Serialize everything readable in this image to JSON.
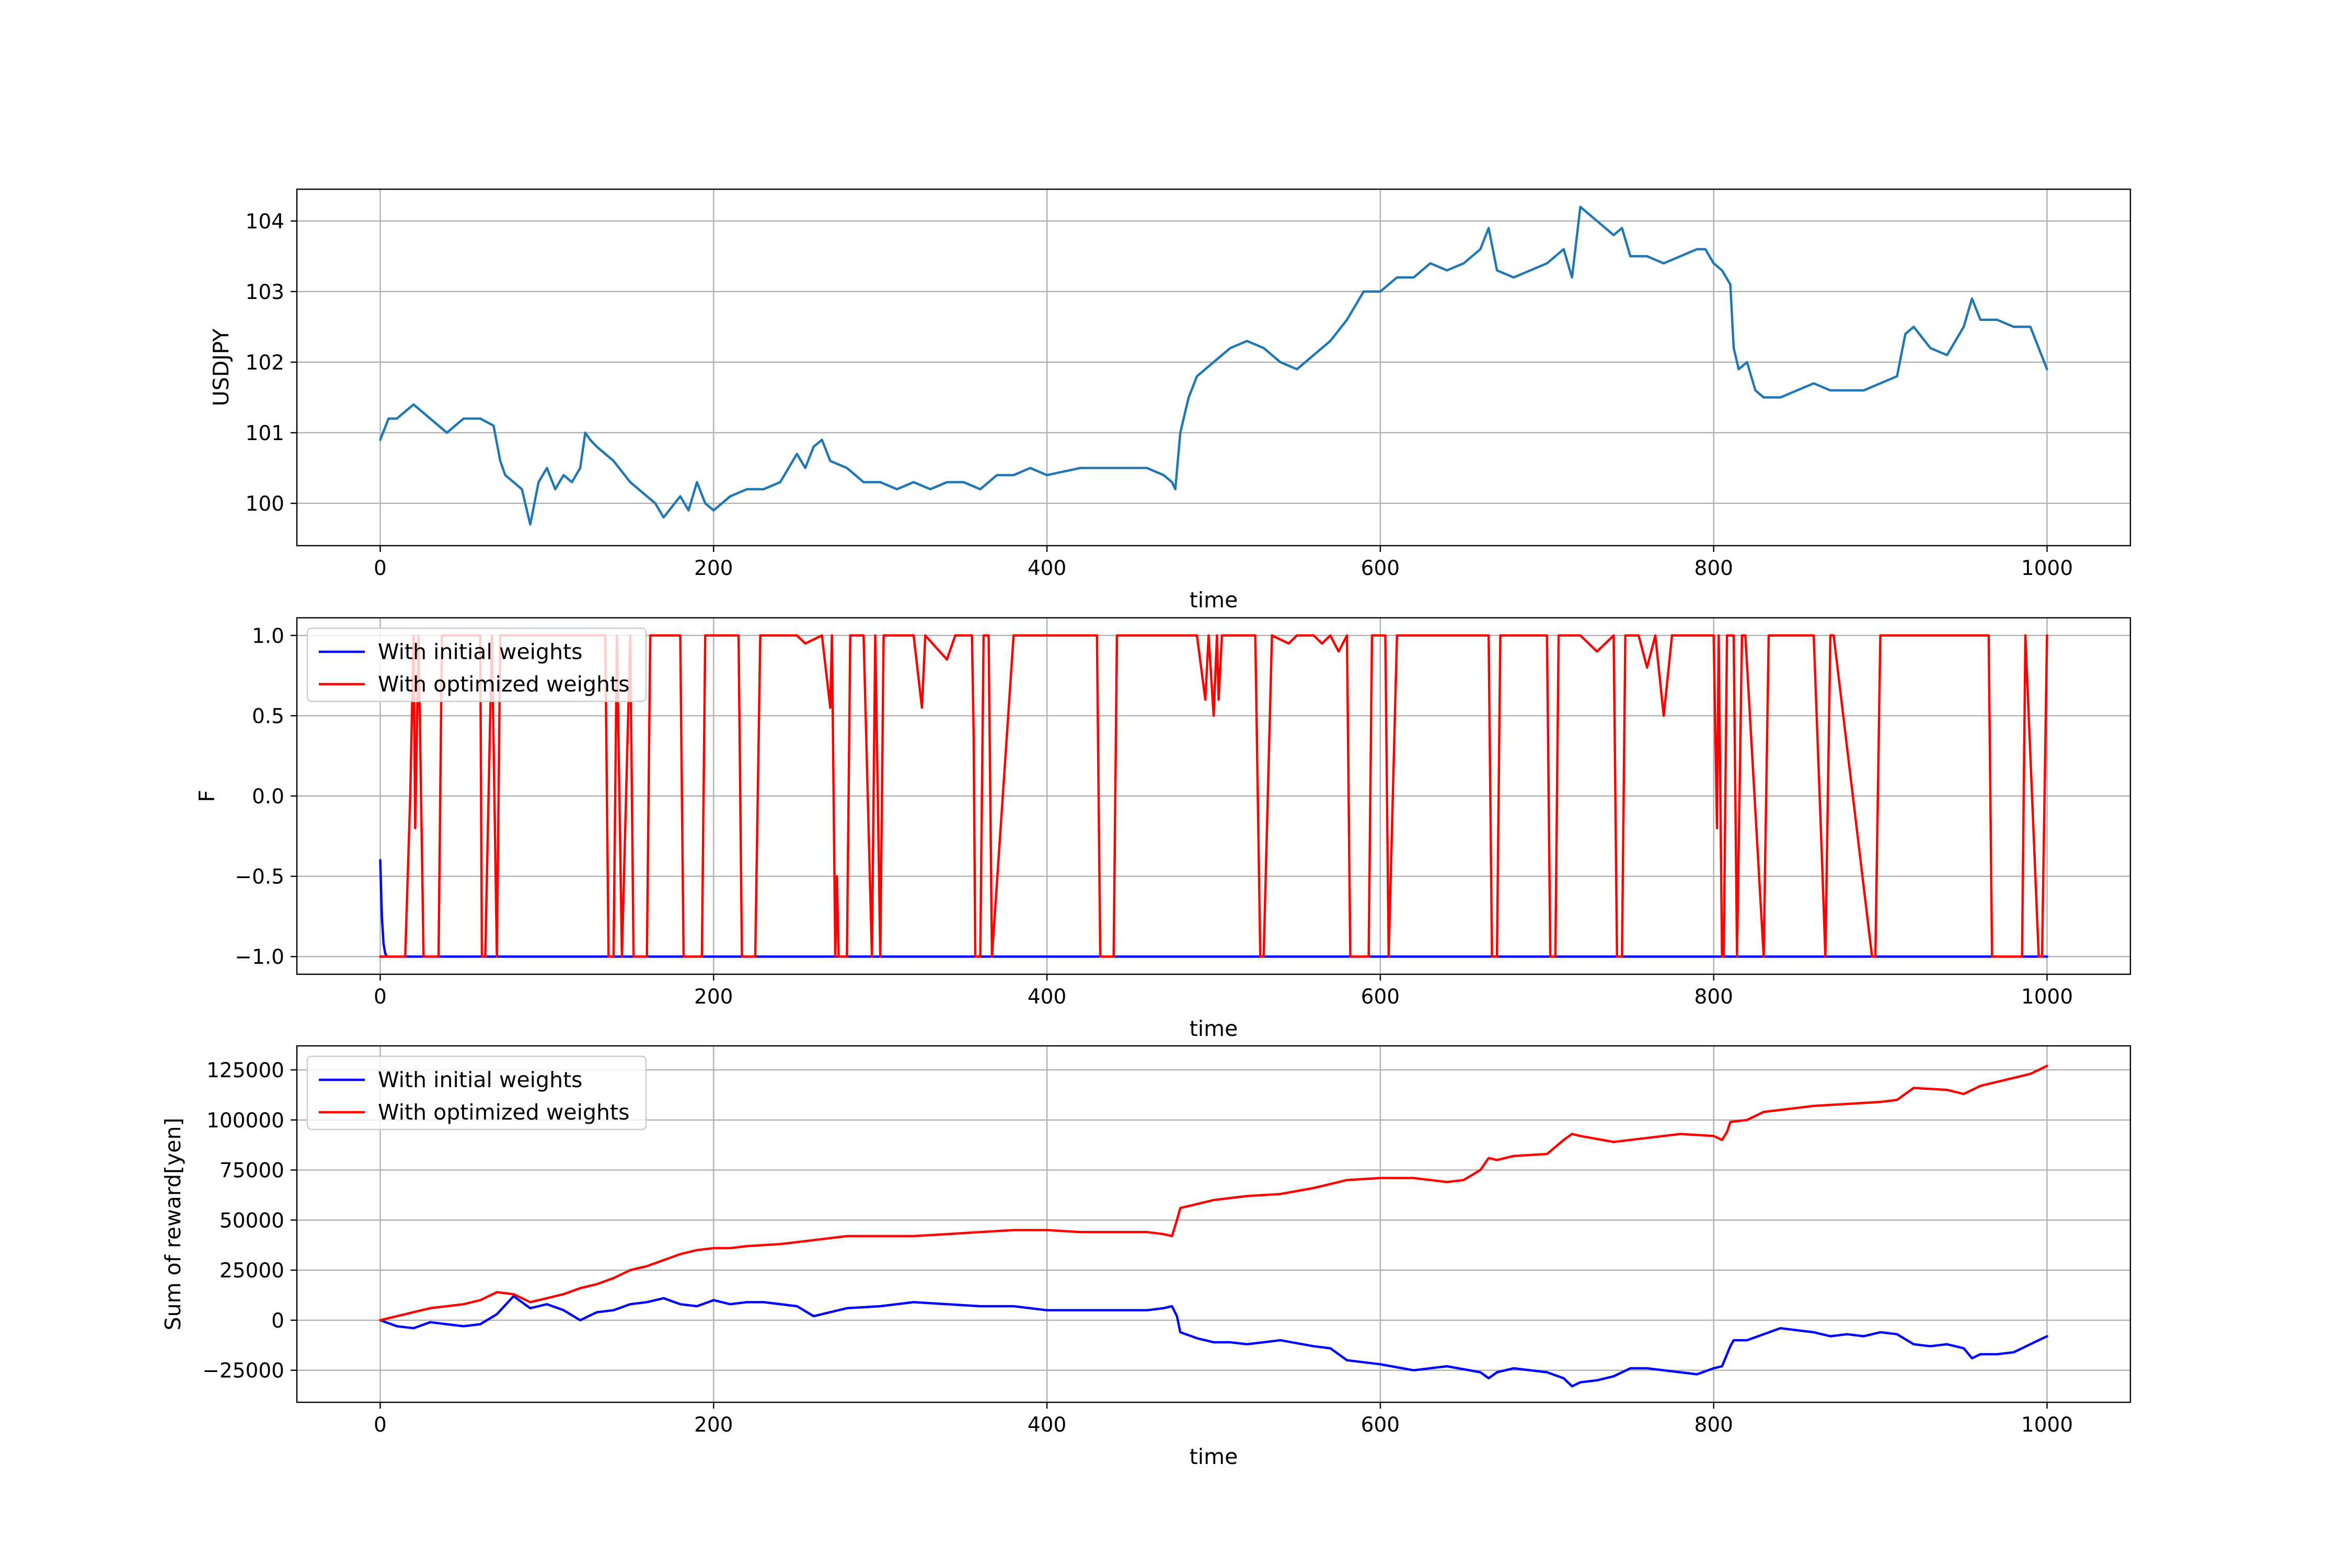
{
  "chart_data": [
    {
      "type": "line",
      "title": "",
      "xlabel": "time",
      "ylabel": "USDJPY",
      "xlim": [
        -50,
        1050
      ],
      "ylim": [
        99.4,
        104.45
      ],
      "x_ticks": [
        0,
        200,
        400,
        600,
        800,
        1000
      ],
      "x_tick_labels": [
        "0",
        "200",
        "400",
        "600",
        "800",
        "1000"
      ],
      "y_ticks": [
        100,
        101,
        102,
        103,
        104
      ],
      "y_tick_labels": [
        "100",
        "101",
        "102",
        "103",
        "104"
      ],
      "grid": true,
      "legend": null,
      "series": [
        {
          "color": "#1f77b4",
          "x": [
            0,
            5,
            10,
            20,
            30,
            40,
            50,
            60,
            68,
            72,
            75,
            80,
            85,
            88,
            90,
            95,
            100,
            105,
            110,
            115,
            120,
            123,
            126,
            130,
            140,
            150,
            155,
            160,
            165,
            170,
            180,
            185,
            190,
            195,
            200,
            210,
            220,
            230,
            240,
            250,
            255,
            260,
            265,
            270,
            280,
            290,
            300,
            310,
            320,
            330,
            340,
            350,
            360,
            370,
            380,
            390,
            400,
            420,
            440,
            460,
            470,
            475,
            477,
            480,
            485,
            490,
            500,
            510,
            520,
            530,
            540,
            550,
            560,
            570,
            580,
            590,
            600,
            610,
            620,
            630,
            640,
            650,
            660,
            665,
            670,
            680,
            690,
            700,
            710,
            715,
            720,
            730,
            740,
            745,
            750,
            760,
            770,
            780,
            790,
            795,
            800,
            805,
            810,
            812,
            815,
            820,
            825,
            830,
            840,
            850,
            860,
            870,
            880,
            890,
            900,
            910,
            915,
            920,
            930,
            940,
            950,
            955,
            960,
            970,
            980,
            990,
            995,
            1000
          ],
          "y": [
            100.9,
            101.2,
            101.2,
            101.4,
            101.2,
            101.0,
            101.2,
            101.2,
            101.1,
            100.6,
            100.4,
            100.3,
            100.2,
            99.9,
            99.7,
            100.3,
            100.5,
            100.2,
            100.4,
            100.3,
            100.5,
            101.0,
            100.9,
            100.8,
            100.6,
            100.3,
            100.2,
            100.1,
            100.0,
            99.8,
            100.1,
            99.9,
            100.3,
            100.0,
            99.9,
            100.1,
            100.2,
            100.2,
            100.3,
            100.7,
            100.5,
            100.8,
            100.9,
            100.6,
            100.5,
            100.3,
            100.3,
            100.2,
            100.3,
            100.2,
            100.3,
            100.3,
            100.2,
            100.4,
            100.4,
            100.5,
            100.4,
            100.5,
            100.5,
            100.5,
            100.4,
            100.3,
            100.2,
            101.0,
            101.5,
            101.8,
            102.0,
            102.2,
            102.3,
            102.2,
            102.0,
            101.9,
            102.1,
            102.3,
            102.6,
            103.0,
            103.0,
            103.2,
            103.2,
            103.4,
            103.3,
            103.4,
            103.6,
            103.9,
            103.3,
            103.2,
            103.3,
            103.4,
            103.6,
            103.2,
            104.2,
            104.0,
            103.8,
            103.9,
            103.5,
            103.5,
            103.4,
            103.5,
            103.6,
            103.6,
            103.4,
            103.3,
            103.1,
            102.2,
            101.9,
            102.0,
            101.6,
            101.5,
            101.5,
            101.6,
            101.7,
            101.6,
            101.6,
            101.6,
            101.7,
            101.8,
            102.4,
            102.5,
            102.2,
            102.1,
            102.5,
            102.9,
            102.6,
            102.6,
            102.5,
            102.5,
            102.2,
            101.9
          ]
        }
      ]
    },
    {
      "type": "line",
      "title": "",
      "xlabel": "time",
      "ylabel": "F",
      "xlim": [
        -50,
        1050
      ],
      "ylim": [
        -1.11,
        1.11
      ],
      "x_ticks": [
        0,
        200,
        400,
        600,
        800,
        1000
      ],
      "x_tick_labels": [
        "0",
        "200",
        "400",
        "600",
        "800",
        "1000"
      ],
      "y_ticks": [
        -1.0,
        -0.5,
        0.0,
        0.5,
        1.0
      ],
      "y_tick_labels": [
        "−1.0",
        "−0.5",
        "0.0",
        "0.5",
        "1.0"
      ],
      "grid": true,
      "legend": "upper left",
      "series": [
        {
          "name": "With initial weights",
          "color": "#0000ff",
          "x": [
            0,
            1,
            2,
            3,
            4,
            5,
            10,
            1000
          ],
          "y": [
            -0.4,
            -0.75,
            -0.92,
            -0.98,
            -1.0,
            -1.0,
            -1.0,
            -1.0
          ]
        },
        {
          "name": "With optimized weights",
          "color": "#ff0000",
          "x": [
            0,
            15,
            18,
            20,
            21,
            23,
            26,
            35,
            37,
            60,
            61,
            63,
            67,
            70,
            72,
            135,
            137,
            140,
            142,
            145,
            150,
            152,
            160,
            162,
            180,
            182,
            193,
            195,
            215,
            217,
            225,
            228,
            230,
            235,
            240,
            245,
            250,
            255,
            265,
            270,
            271,
            273,
            274,
            275,
            276,
            280,
            282,
            290,
            295,
            297,
            300,
            302,
            320,
            325,
            327,
            340,
            345,
            355,
            356,
            357,
            360,
            362,
            365,
            367,
            380,
            400,
            410,
            420,
            430,
            432,
            440,
            442,
            490,
            495,
            497,
            500,
            502,
            503,
            505,
            525,
            528,
            530,
            535,
            545,
            550,
            560,
            565,
            570,
            575,
            580,
            582,
            593,
            595,
            603,
            605,
            610,
            612,
            630,
            640,
            650,
            665,
            667,
            670,
            672,
            680,
            700,
            702,
            705,
            707,
            720,
            730,
            740,
            742,
            745,
            747,
            755,
            760,
            765,
            770,
            775,
            780,
            800,
            802,
            803,
            805,
            806,
            808,
            812,
            814,
            817,
            819,
            830,
            833,
            840,
            850,
            860,
            865,
            867,
            870,
            872,
            895,
            897,
            900,
            902,
            930,
            945,
            965,
            967,
            985,
            987,
            995,
            997,
            1000
          ],
          "y": [
            -1,
            -1,
            0.0,
            1.0,
            -0.2,
            1.0,
            -1.0,
            -1.0,
            1.0,
            1.0,
            -1.0,
            -1.0,
            1.0,
            -1.0,
            1.0,
            1.0,
            -1.0,
            -1.0,
            1.0,
            -1.0,
            1.0,
            -1.0,
            -1.0,
            1.0,
            1.0,
            -1.0,
            -1.0,
            1.0,
            1.0,
            -1.0,
            -1.0,
            1.0,
            1.0,
            1.0,
            1.0,
            1.0,
            1.0,
            0.95,
            1.0,
            0.55,
            1.0,
            -1.0,
            -0.5,
            -1.0,
            -1.0,
            -1.0,
            1.0,
            1.0,
            -1.0,
            1.0,
            -1.0,
            1.0,
            1.0,
            0.55,
            1.0,
            0.85,
            1.0,
            1.0,
            0.4,
            -1.0,
            -1.0,
            1.0,
            1.0,
            -1.0,
            1.0,
            1.0,
            1.0,
            1.0,
            1.0,
            -1.0,
            -1.0,
            1.0,
            1.0,
            0.6,
            1.0,
            0.5,
            1.0,
            0.6,
            1.0,
            1.0,
            -1.0,
            -1.0,
            1.0,
            0.95,
            1.0,
            1.0,
            0.95,
            1.0,
            0.9,
            1.0,
            -1.0,
            -1.0,
            1.0,
            1.0,
            -1.0,
            1.0,
            1.0,
            1.0,
            1.0,
            1.0,
            1.0,
            -1.0,
            -1.0,
            1.0,
            1.0,
            1.0,
            -1.0,
            -1.0,
            1.0,
            1.0,
            0.9,
            1.0,
            -1.0,
            -1.0,
            1.0,
            1.0,
            0.8,
            1.0,
            0.5,
            1.0,
            1.0,
            1.0,
            -0.2,
            1.0,
            -1.0,
            -1.0,
            1.0,
            1.0,
            -1.0,
            1.0,
            1.0,
            -1.0,
            1.0,
            1.0,
            1.0,
            1.0,
            -0.4,
            -1.0,
            1.0,
            1.0,
            -1.0,
            -1.0,
            1.0,
            1.0,
            1.0,
            1.0,
            1.0,
            -1.0,
            -1.0,
            1.0,
            -1.0,
            -1.0,
            1.0
          ]
        }
      ]
    },
    {
      "type": "line",
      "title": "",
      "xlabel": "time",
      "ylabel": "Sum of reward[yen]",
      "xlim": [
        -50,
        1050
      ],
      "ylim": [
        -41000,
        137000
      ],
      "x_ticks": [
        0,
        200,
        400,
        600,
        800,
        1000
      ],
      "x_tick_labels": [
        "0",
        "200",
        "400",
        "600",
        "800",
        "1000"
      ],
      "y_ticks": [
        -25000,
        0,
        25000,
        50000,
        75000,
        100000,
        125000
      ],
      "y_tick_labels": [
        "−25000",
        "0",
        "25000",
        "50000",
        "75000",
        "100000",
        "125000"
      ],
      "grid": true,
      "legend": "upper left",
      "series": [
        {
          "name": "With initial weights",
          "color": "#0000ff",
          "x": [
            0,
            10,
            20,
            30,
            40,
            50,
            60,
            70,
            80,
            90,
            100,
            110,
            120,
            130,
            140,
            150,
            160,
            170,
            180,
            190,
            200,
            210,
            220,
            230,
            250,
            260,
            270,
            280,
            300,
            320,
            340,
            360,
            380,
            400,
            420,
            440,
            460,
            470,
            475,
            478,
            480,
            490,
            500,
            510,
            520,
            530,
            540,
            560,
            570,
            580,
            600,
            620,
            640,
            660,
            665,
            670,
            680,
            700,
            710,
            715,
            720,
            730,
            740,
            750,
            760,
            780,
            790,
            800,
            805,
            810,
            812,
            820,
            830,
            840,
            850,
            860,
            870,
            880,
            890,
            900,
            910,
            920,
            930,
            940,
            950,
            955,
            960,
            970,
            980,
            990,
            995,
            1000
          ],
          "y": [
            0,
            -3000,
            -4000,
            -1000,
            -2000,
            -3000,
            -2000,
            3000,
            12000,
            6000,
            8000,
            5000,
            0,
            4000,
            5000,
            8000,
            9000,
            11000,
            8000,
            7000,
            10000,
            8000,
            9000,
            9000,
            7000,
            2000,
            4000,
            6000,
            7000,
            9000,
            8000,
            7000,
            7000,
            5000,
            5000,
            5000,
            5000,
            6000,
            7000,
            2000,
            -6000,
            -9000,
            -11000,
            -11000,
            -12000,
            -11000,
            -10000,
            -13000,
            -14000,
            -20000,
            -22000,
            -25000,
            -23000,
            -26000,
            -29000,
            -26000,
            -24000,
            -26000,
            -29000,
            -33000,
            -31000,
            -30000,
            -28000,
            -24000,
            -24000,
            -26000,
            -27000,
            -24000,
            -23000,
            -13000,
            -10000,
            -10000,
            -7000,
            -4000,
            -5000,
            -6000,
            -8000,
            -7000,
            -8000,
            -6000,
            -7000,
            -12000,
            -13000,
            -12000,
            -14000,
            -19000,
            -17000,
            -17000,
            -16000,
            -12000,
            -10000,
            -8000
          ]
        },
        {
          "name": "With optimized weights",
          "color": "#ff0000",
          "x": [
            0,
            10,
            20,
            30,
            40,
            50,
            60,
            70,
            80,
            90,
            100,
            110,
            120,
            130,
            140,
            150,
            160,
            170,
            180,
            190,
            200,
            210,
            220,
            240,
            260,
            280,
            300,
            320,
            340,
            360,
            380,
            400,
            420,
            440,
            460,
            470,
            475,
            478,
            480,
            490,
            500,
            520,
            540,
            560,
            570,
            580,
            600,
            620,
            640,
            650,
            660,
            665,
            670,
            680,
            700,
            710,
            715,
            720,
            740,
            760,
            780,
            800,
            805,
            808,
            810,
            820,
            830,
            840,
            860,
            880,
            900,
            910,
            920,
            940,
            950,
            960,
            980,
            990,
            1000
          ],
          "y": [
            0,
            2000,
            4000,
            6000,
            7000,
            8000,
            10000,
            14000,
            13000,
            9000,
            11000,
            13000,
            16000,
            18000,
            21000,
            25000,
            27000,
            30000,
            33000,
            35000,
            36000,
            36000,
            37000,
            38000,
            40000,
            42000,
            42000,
            42000,
            43000,
            44000,
            45000,
            45000,
            44000,
            44000,
            44000,
            43000,
            42000,
            50000,
            56000,
            58000,
            60000,
            62000,
            63000,
            66000,
            68000,
            70000,
            71000,
            71000,
            69000,
            70000,
            75000,
            81000,
            80000,
            82000,
            83000,
            90000,
            93000,
            92000,
            89000,
            91000,
            93000,
            92000,
            90000,
            94000,
            99000,
            100000,
            104000,
            105000,
            107000,
            108000,
            109000,
            110000,
            116000,
            115000,
            113000,
            117000,
            121000,
            123000,
            127000
          ]
        }
      ]
    }
  ]
}
